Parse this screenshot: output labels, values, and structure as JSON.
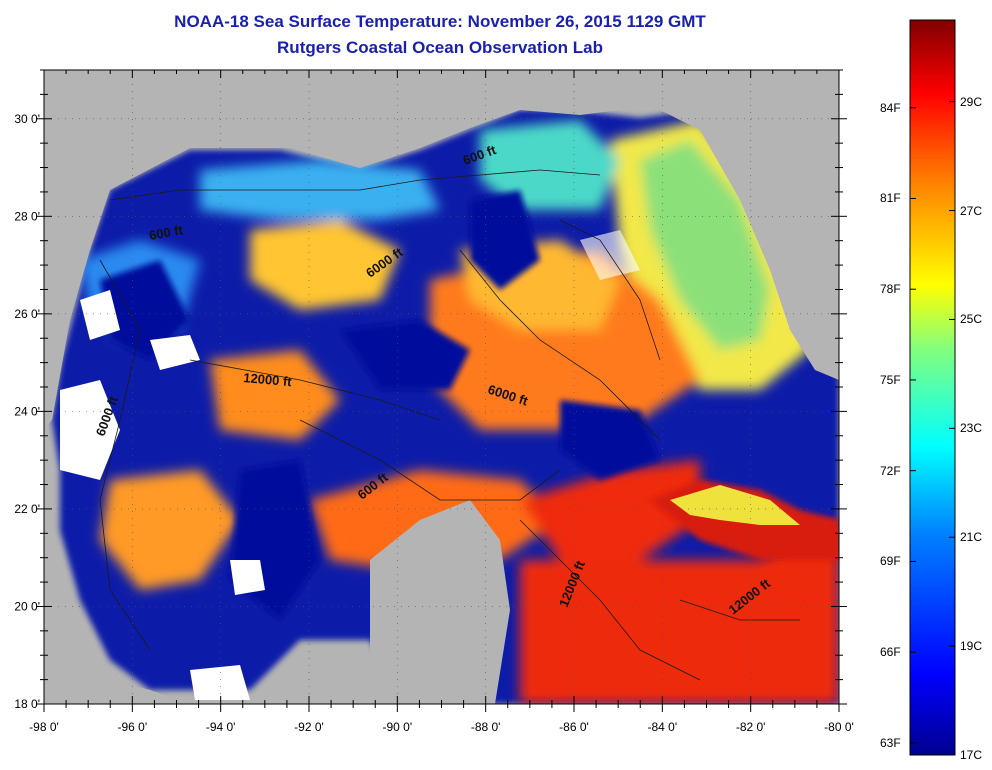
{
  "header": {
    "title": "NOAA-18 Sea Surface Temperature:  November 26, 2015 1129 GMT",
    "subtitle": "Rutgers Coastal Ocean Observation Lab"
  },
  "map": {
    "lon_range": [
      -98,
      -80
    ],
    "lat_range": [
      18,
      31
    ],
    "lon_ticks": [
      "-98 0'",
      "-96 0'",
      "-94 0'",
      "-92 0'",
      "-90 0'",
      "-88 0'",
      "-86 0'",
      "-84 0'",
      "-82 0'",
      "-80 0'"
    ],
    "lat_ticks": [
      "18 0'",
      "20 0'",
      "22 0'",
      "24 0'",
      "26 0'",
      "28 0'",
      "30 0'"
    ],
    "contour_labels": [
      "600 ft",
      "6000 ft",
      "600 ft",
      "12000 ft",
      "6000 ft",
      "6000 ft",
      "600 ft",
      "12000 ft",
      "12000 ft"
    ],
    "land_color": "#b4b4b4",
    "cloud_color": "#ffffff"
  },
  "colorbar": {
    "fahrenheit": [
      "84F",
      "81F",
      "78F",
      "75F",
      "72F",
      "69F",
      "66F",
      "63F"
    ],
    "celsius": [
      "29C",
      "27C",
      "25C",
      "23C",
      "21C",
      "19C",
      "17C"
    ],
    "range_c": [
      17,
      30.5
    ],
    "colors": [
      "#00008f",
      "#0000ff",
      "#0080ff",
      "#00ffff",
      "#80ff80",
      "#ffff00",
      "#ff8000",
      "#ff0000",
      "#800000"
    ]
  }
}
